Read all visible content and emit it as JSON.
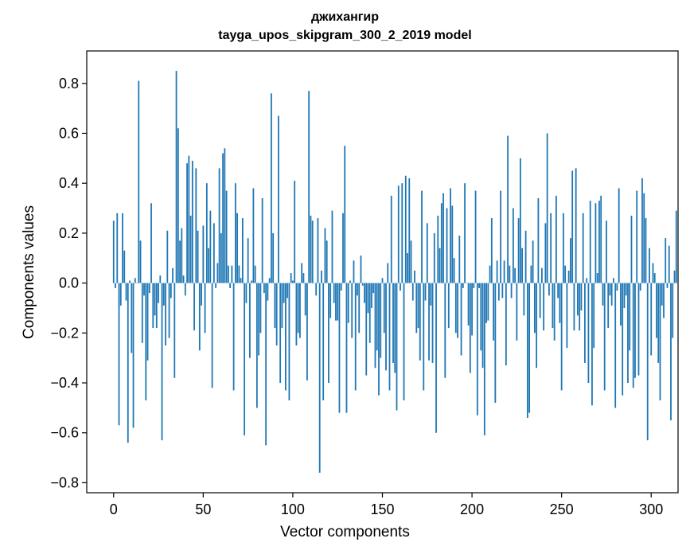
{
  "chart_data": {
    "type": "bar",
    "title": "джихангир",
    "subtitle": "tayga_upos_skipgram_300_2_2019 model",
    "xlabel": "Vector components",
    "ylabel": "Components values",
    "xlim": [
      -15,
      315
    ],
    "ylim": [
      -0.84,
      0.93
    ],
    "xticks": [
      0,
      50,
      100,
      150,
      200,
      250,
      300
    ],
    "yticks": [
      -0.8,
      -0.6,
      -0.4,
      -0.2,
      0.0,
      0.2,
      0.4,
      0.6,
      0.8
    ],
    "xtick_labels": [
      "0",
      "50",
      "100",
      "150",
      "200",
      "250",
      "300"
    ],
    "ytick_labels": [
      "−0.8",
      "−0.6",
      "−0.4",
      "−0.2",
      "0.0",
      "0.2",
      "0.4",
      "0.6",
      "0.8"
    ],
    "grid": false,
    "bar_color": "#1f77b4",
    "values": [
      0.25,
      -0.02,
      0.28,
      -0.57,
      -0.09,
      0.28,
      0.13,
      -0.07,
      -0.64,
      0.01,
      -0.28,
      -0.58,
      0.02,
      0.0,
      0.81,
      0.17,
      -0.24,
      -0.05,
      -0.47,
      -0.31,
      -0.04,
      0.32,
      -0.18,
      -0.13,
      -0.18,
      -0.08,
      0.03,
      -0.63,
      -0.09,
      -0.25,
      0.21,
      -0.22,
      -0.06,
      0.06,
      -0.38,
      0.85,
      0.62,
      0.17,
      0.22,
      0.03,
      -0.05,
      0.48,
      0.51,
      0.27,
      0.49,
      -0.19,
      0.46,
      0.21,
      -0.27,
      -0.09,
      0.23,
      -0.2,
      0.4,
      0.14,
      0.29,
      -0.42,
      0.24,
      -0.02,
      0.08,
      0.46,
      0.2,
      0.52,
      0.54,
      0.37,
      0.07,
      -0.02,
      0.07,
      -0.43,
      0.4,
      0.28,
      0.07,
      0.02,
      0.26,
      -0.61,
      -0.08,
      0.18,
      -0.3,
      0.01,
      0.38,
      0.07,
      -0.5,
      -0.29,
      -0.2,
      0.34,
      -0.04,
      -0.65,
      -0.07,
      0.02,
      0.76,
      0.2,
      -0.18,
      -0.25,
      0.67,
      -0.4,
      -0.18,
      -0.08,
      -0.43,
      -0.06,
      -0.47,
      0.04,
      0.01,
      0.41,
      -0.25,
      -0.2,
      -0.22,
      0.08,
      0.04,
      -0.13,
      -0.39,
      0.77,
      0.27,
      0.25,
      0.0,
      -0.05,
      0.26,
      -0.76,
      0.05,
      -0.47,
      0.22,
      0.17,
      -0.4,
      -0.14,
      0.29,
      -0.08,
      -0.15,
      -0.15,
      -0.52,
      -0.03,
      0.28,
      0.55,
      -0.52,
      -0.16,
      0.01,
      -0.22,
      0.09,
      -0.43,
      -0.05,
      -0.2,
      0.11,
      -0.01,
      -0.08,
      -0.37,
      -0.12,
      -0.24,
      -0.1,
      -0.04,
      -0.34,
      -0.27,
      -0.45,
      -0.3,
      0.02,
      -0.2,
      -0.35,
      0.08,
      -0.43,
      0.35,
      -0.32,
      -0.36,
      -0.51,
      0.39,
      -0.03,
      0.4,
      -0.47,
      0.43,
      0.12,
      0.42,
      0.17,
      -0.07,
      0.05,
      -0.2,
      -0.18,
      -0.31,
      0.37,
      -0.43,
      -0.07,
      0.24,
      -0.31,
      -0.09,
      -0.32,
      0.2,
      -0.6,
      0.27,
      0.14,
      0.32,
      0.36,
      -0.38,
      0.3,
      -0.18,
      0.38,
      0.31,
      0.1,
      -0.2,
      -0.22,
      0.19,
      -0.29,
      -0.02,
      0.4,
      0.0,
      -0.17,
      -0.36,
      -0.21,
      -0.02,
      0.37,
      -0.53,
      -0.02,
      -0.27,
      -0.34,
      -0.61,
      -0.16,
      -0.15,
      0.07,
      0.26,
      -0.23,
      -0.48,
      0.09,
      -0.07,
      0.37,
      -0.06,
      0.09,
      -0.33,
      0.59,
      0.07,
      -0.06,
      0.3,
      0.06,
      -0.23,
      0.26,
      0.5,
      0.14,
      -0.13,
      0.21,
      -0.54,
      -0.52,
      0.07,
      0.17,
      -0.2,
      -0.34,
      0.34,
      -0.14,
      0.06,
      -0.19,
      0.24,
      0.6,
      -0.05,
      0.28,
      -0.18,
      -0.23,
      0.35,
      -0.06,
      -0.16,
      -0.43,
      0.28,
      0.07,
      -0.26,
      0.05,
      0.18,
      0.45,
      -0.19,
      0.46,
      -0.13,
      -0.19,
      -0.11,
      0.28,
      -0.32,
      0.02,
      -0.4,
      0.33,
      -0.49,
      -0.26,
      0.32,
      0.04,
      0.33,
      0.35,
      -0.09,
      -0.43,
      0.25,
      -0.18,
      -0.05,
      -0.09,
      0.02,
      -0.5,
      -0.03,
      0.38,
      -0.17,
      -0.45,
      -0.1,
      -0.05,
      -0.4,
      -0.27,
      0.27,
      -0.42,
      -0.38,
      0.37,
      -0.37,
      -0.03,
      0.42,
      0.36,
      0.26,
      -0.63,
      0.14,
      -0.29,
      0.08,
      0.04,
      -0.22,
      -0.32,
      -0.47,
      -0.09,
      -0.14,
      0.18,
      -0.02,
      0.15,
      -0.55,
      -0.22,
      0.05,
      0.29
    ]
  }
}
